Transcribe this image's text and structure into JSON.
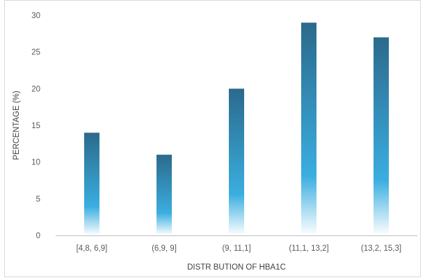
{
  "chart_data": {
    "type": "bar",
    "title": "",
    "xlabel": "DISTR BUTION OF HBA1C",
    "ylabel": "PERCENTAGE (%)",
    "categories": [
      "[4,8, 6,9]",
      "(6,9, 9]",
      "(9, 11,1]",
      "(11,1, 13,2]",
      "(13,2, 15,3]"
    ],
    "values": [
      14,
      11,
      20,
      29,
      27
    ],
    "ylim": [
      0,
      30
    ],
    "yticks": [
      0,
      5,
      10,
      15,
      20,
      25,
      30
    ],
    "grid": false,
    "legend": "none",
    "colors": {
      "bar_top": "#2b6a8c",
      "bar_mid": "#3aaee0",
      "bar_bottom": "#ffffff",
      "axis": "#bfbfbf"
    }
  }
}
